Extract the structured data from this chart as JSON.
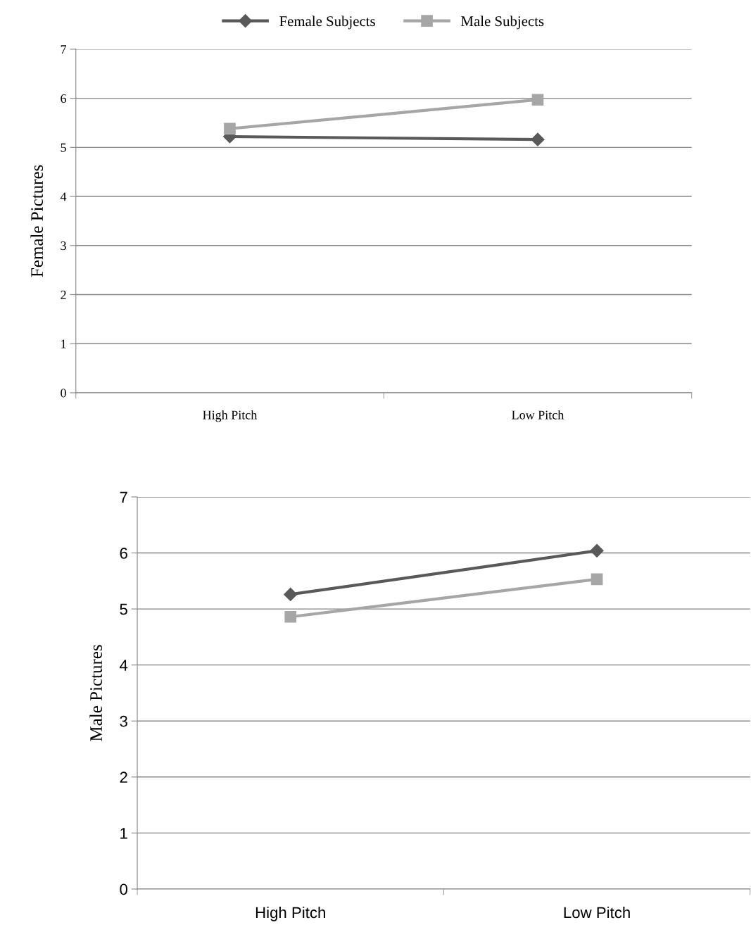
{
  "chart_data": [
    {
      "type": "line",
      "ylabel": "Female Pictures",
      "categories": [
        "High Pitch",
        "Low Pitch"
      ],
      "series": [
        {
          "name": "Female Subjects",
          "color": "#595959",
          "values": [
            5.22,
            5.16
          ],
          "marker": "diamond"
        },
        {
          "name": "Male Subjects",
          "color": "#a6a6a6",
          "values": [
            5.38,
            5.97
          ],
          "marker": "square"
        }
      ],
      "ylim": [
        0,
        7
      ],
      "yticks": [
        0,
        1,
        2,
        3,
        4,
        5,
        6,
        7
      ],
      "grid": "y",
      "legend": "top",
      "line_style": "solid"
    },
    {
      "type": "line",
      "ylabel": "Male Pictures",
      "categories": [
        "High Pitch",
        "Low Pitch"
      ],
      "series": [
        {
          "color": "#595959",
          "values": [
            5.26,
            6.04
          ],
          "marker": "diamond"
        },
        {
          "color": "#a6a6a6",
          "values": [
            4.86,
            5.53
          ],
          "marker": "square"
        }
      ],
      "ylim": [
        0,
        7
      ],
      "yticks": [
        0,
        1,
        2,
        3,
        4,
        5,
        6,
        7
      ],
      "grid": "y",
      "line_style": "solid"
    }
  ]
}
